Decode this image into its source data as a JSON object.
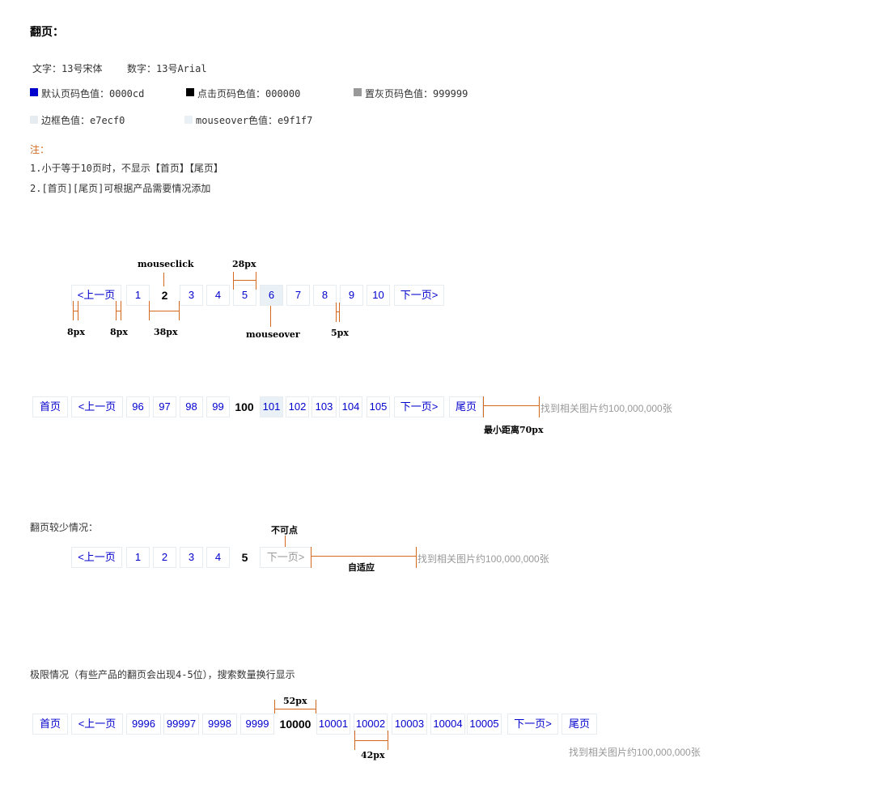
{
  "title": "翻页：",
  "spec": {
    "text_font": "文字：13号宋体",
    "number_font": "数字：13号Arial"
  },
  "colors": [
    {
      "label": "默认页码色值：0000cd",
      "swatch": "#0000cd"
    },
    {
      "label": "点击页码色值：000000",
      "swatch": "#000000"
    },
    {
      "label": "置灰页码色值：999999",
      "swatch": "#999999"
    },
    {
      "label": "边框色值：e7ecf0",
      "swatch": "#e7ecf0"
    },
    {
      "label": "mouseover色值：e9f1f7",
      "swatch": "#e9f1f7"
    }
  ],
  "notes": {
    "head": "注：",
    "line1": "1.小于等于10页时，不显示【首页】【尾页】",
    "line2": "2.[首页][尾页]可根据产品需要情况添加"
  },
  "pager1": {
    "items": [
      "<上一页",
      "1",
      "2",
      "3",
      "4",
      "5",
      "6",
      "7",
      "8",
      "9",
      "10",
      "下一页>"
    ],
    "annotations": {
      "mouseclick": "mouseclick",
      "w28": "28px",
      "gap8a": "8px",
      "gap8b": "8px",
      "w38": "38px",
      "mouseover": "mouseover",
      "gap5": "5px"
    }
  },
  "pager2": {
    "items": [
      "首页",
      "<上一页",
      "96",
      "97",
      "98",
      "99",
      "100",
      "101",
      "102",
      "103",
      "104",
      "105",
      "下一页>",
      "尾页"
    ],
    "found": "找到相关图片约100,000,000张",
    "annotation": "最小距离70px"
  },
  "section3_label": "翻页较少情况：",
  "pager3": {
    "items": [
      "<上一页",
      "1",
      "2",
      "3",
      "4",
      "5",
      "下一页>"
    ],
    "found": "找到相关图片约100,000,000张",
    "ann_disabled": "不可点",
    "ann_adaptive": "自适应"
  },
  "section4_label": "极限情况（有些产品的翻页会出现4-5位），搜索数量换行显示",
  "pager4": {
    "items": [
      "首页",
      "<上一页",
      "9996",
      "99997",
      "9998",
      "9999",
      "10000",
      "10001",
      "10002",
      "10003",
      "10004",
      "10005",
      "下一页>",
      "尾页"
    ],
    "found": "找到相关图片约100,000,000张",
    "ann_w52": "52px",
    "ann_w42": "42px"
  }
}
